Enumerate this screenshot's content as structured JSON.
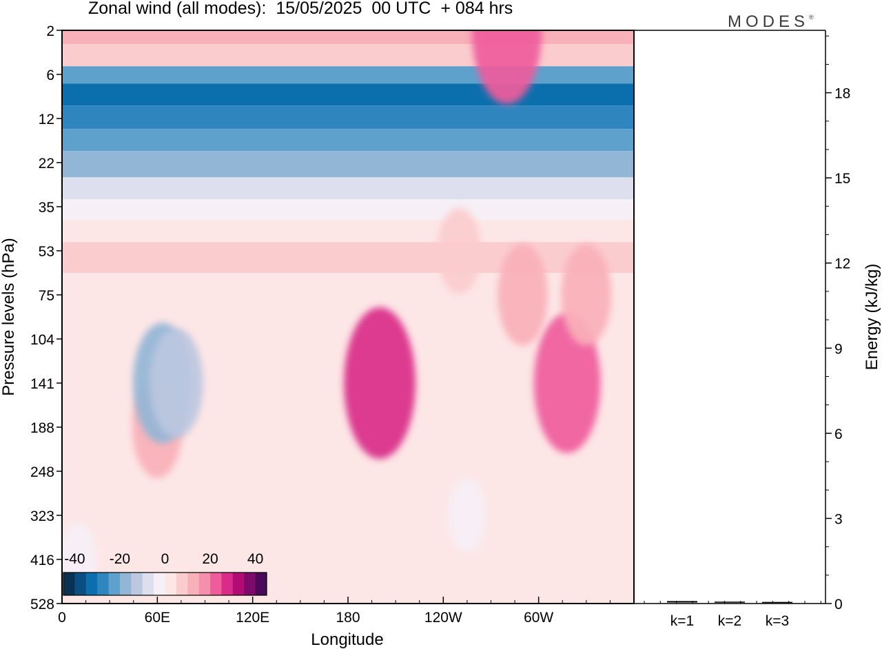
{
  "title": "Zonal wind (all modes):  15/05/2025  00 UTC  + 084 hrs",
  "brand": {
    "text": "MODES",
    "mark": "®"
  },
  "chart_data": [
    {
      "type": "heatmap",
      "title": "Zonal wind (all modes):  15/05/2025  00 UTC  + 084 hrs",
      "xlabel": "Longitude",
      "ylabel": "Pressure levels (hPa)",
      "x_ticks": [
        "0",
        "60E",
        "120E",
        "180",
        "120W",
        "60W"
      ],
      "y_ticks": [
        "2",
        "6",
        "12",
        "22",
        "35",
        "53",
        "75",
        "104",
        "141",
        "188",
        "248",
        "323",
        "416",
        "528"
      ],
      "colorbar": {
        "tick_labels": [
          "-40",
          "-20",
          "0",
          "20",
          "40"
        ],
        "range": [
          -45,
          45
        ],
        "step": 5,
        "colors": [
          "#0b3152",
          "#0b4f80",
          "#0c6fad",
          "#2f86bf",
          "#5ea1cd",
          "#92b6d6",
          "#bcc7e0",
          "#dedfee",
          "#f6f0f6",
          "#fde6e6",
          "#fbcccd",
          "#f8b0b9",
          "#f48fad",
          "#ef5c9c",
          "#d92b88",
          "#b00c74",
          "#7e0a6c",
          "#4b0a59"
        ]
      },
      "bands": [
        {
          "level": "2",
          "value": 12
        },
        {
          "level": "4",
          "value": 5
        },
        {
          "level": "6",
          "value": -25
        },
        {
          "level": "8",
          "value": -35
        },
        {
          "level": "12",
          "value": -30
        },
        {
          "level": "16",
          "value": -25
        },
        {
          "level": "22",
          "value": -18
        },
        {
          "level": "30",
          "value": -8
        },
        {
          "level": "35",
          "value": -5
        },
        {
          "level": "45",
          "value": 2
        },
        {
          "level": "53",
          "value": 5
        },
        {
          "level": "75",
          "value": 3
        },
        {
          "level": "104",
          "value": 2
        },
        {
          "level": "141",
          "value": 2
        },
        {
          "level": "188",
          "value": 2
        },
        {
          "level": "248",
          "value": 0
        },
        {
          "level": "323",
          "value": 0
        },
        {
          "level": "416",
          "value": 0
        },
        {
          "level": "528",
          "value": 0
        }
      ],
      "features": [
        {
          "lon": 200,
          "level": "141",
          "value": 27
        },
        {
          "lon": 318,
          "level": "141",
          "value": 22
        },
        {
          "lon": 60,
          "level": "188",
          "value": 12
        },
        {
          "lon": 63,
          "level": "141",
          "value": -17
        },
        {
          "lon": 72,
          "level": "141",
          "value": -14
        },
        {
          "lon": 10,
          "level": "416",
          "value": -5
        },
        {
          "lon": 255,
          "level": "323",
          "value": -5
        },
        {
          "lon": 290,
          "level": "75",
          "value": 12
        },
        {
          "lon": 330,
          "level": "75",
          "value": 12
        },
        {
          "lon": 250,
          "level": "53",
          "value": 8
        },
        {
          "lon": 280,
          "level": "2",
          "value": 24
        }
      ]
    },
    {
      "type": "bar",
      "categories": [
        "k=1",
        "k=2",
        "k=3"
      ],
      "values": [
        0.05,
        0.03,
        0.02
      ],
      "ylabel": "Energy (kJ/kg)",
      "yticks": [
        "0",
        "3",
        "6",
        "9",
        "12",
        "15",
        "18"
      ],
      "ylim": [
        0,
        20.2
      ]
    }
  ]
}
